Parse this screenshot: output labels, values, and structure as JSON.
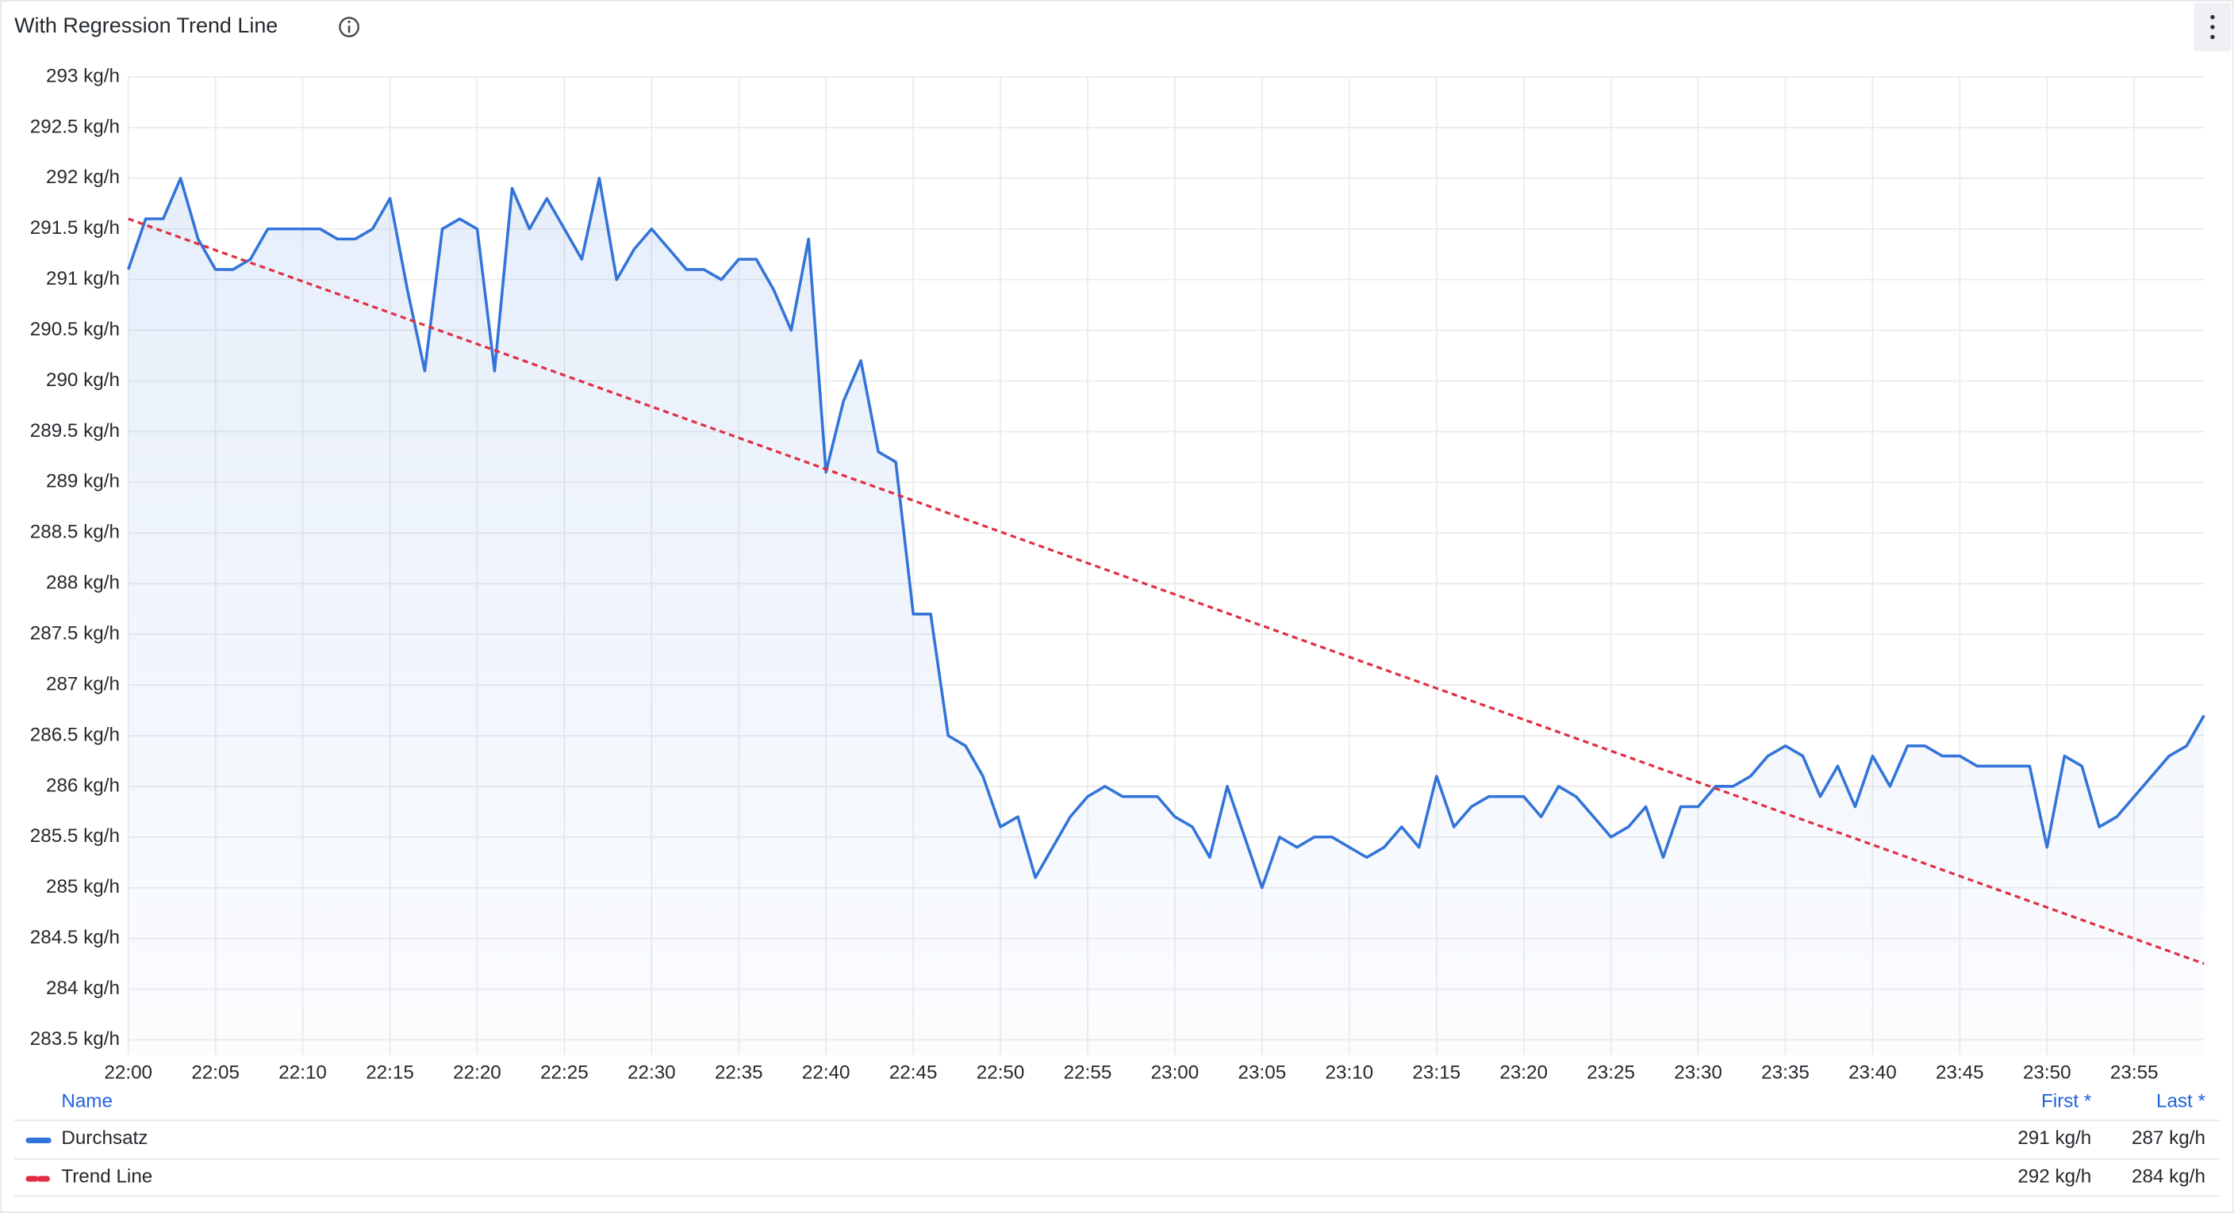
{
  "chart_data": {
    "type": "line",
    "title": "With Regression Trend Line",
    "x": [
      "22:00",
      "22:01",
      "22:02",
      "22:03",
      "22:04",
      "22:05",
      "22:06",
      "22:07",
      "22:08",
      "22:09",
      "22:10",
      "22:11",
      "22:12",
      "22:13",
      "22:14",
      "22:15",
      "22:16",
      "22:17",
      "22:18",
      "22:19",
      "22:20",
      "22:21",
      "22:22",
      "22:23",
      "22:24",
      "22:25",
      "22:26",
      "22:27",
      "22:28",
      "22:29",
      "22:30",
      "22:31",
      "22:32",
      "22:33",
      "22:34",
      "22:35",
      "22:36",
      "22:37",
      "22:38",
      "22:39",
      "22:40",
      "22:41",
      "22:42",
      "22:43",
      "22:44",
      "22:45",
      "22:46",
      "22:47",
      "22:48",
      "22:49",
      "22:50",
      "22:51",
      "22:52",
      "22:53",
      "22:54",
      "22:55",
      "22:56",
      "22:57",
      "22:58",
      "22:59",
      "23:00",
      "23:01",
      "23:02",
      "23:03",
      "23:04",
      "23:05",
      "23:06",
      "23:07",
      "23:08",
      "23:09",
      "23:10",
      "23:11",
      "23:12",
      "23:13",
      "23:14",
      "23:15",
      "23:16",
      "23:17",
      "23:18",
      "23:19",
      "23:20",
      "23:21",
      "23:22",
      "23:23",
      "23:24",
      "23:25",
      "23:26",
      "23:27",
      "23:28",
      "23:29",
      "23:30",
      "23:31",
      "23:32",
      "23:33",
      "23:34",
      "23:35",
      "23:36",
      "23:37",
      "23:38",
      "23:39",
      "23:40",
      "23:41",
      "23:42",
      "23:43",
      "23:44",
      "23:45",
      "23:46",
      "23:47",
      "23:48",
      "23:49",
      "23:50",
      "23:51",
      "23:52",
      "23:53",
      "23:54",
      "23:55",
      "23:56",
      "23:57",
      "23:58",
      "23:59"
    ],
    "xlim": [
      "22:00",
      "23:59"
    ],
    "xticks": [
      "22:00",
      "22:05",
      "22:10",
      "22:15",
      "22:20",
      "22:25",
      "22:30",
      "22:35",
      "22:40",
      "22:45",
      "22:50",
      "22:55",
      "23:00",
      "23:05",
      "23:10",
      "23:15",
      "23:20",
      "23:25",
      "23:30",
      "23:35",
      "23:40",
      "23:45",
      "23:50",
      "23:55"
    ],
    "ylim": [
      283.35,
      293
    ],
    "yticks": [
      {
        "value": 283.5,
        "label": "283.5 kg/h"
      },
      {
        "value": 284,
        "label": "284 kg/h"
      },
      {
        "value": 284.5,
        "label": "284.5 kg/h"
      },
      {
        "value": 285,
        "label": "285 kg/h"
      },
      {
        "value": 285.5,
        "label": "285.5 kg/h"
      },
      {
        "value": 286,
        "label": "286 kg/h"
      },
      {
        "value": 286.5,
        "label": "286.5 kg/h"
      },
      {
        "value": 287,
        "label": "287 kg/h"
      },
      {
        "value": 287.5,
        "label": "287.5 kg/h"
      },
      {
        "value": 288,
        "label": "288 kg/h"
      },
      {
        "value": 288.5,
        "label": "288.5 kg/h"
      },
      {
        "value": 289,
        "label": "289 kg/h"
      },
      {
        "value": 289.5,
        "label": "289.5 kg/h"
      },
      {
        "value": 290,
        "label": "290 kg/h"
      },
      {
        "value": 290.5,
        "label": "290.5 kg/h"
      },
      {
        "value": 291,
        "label": "291 kg/h"
      },
      {
        "value": 291.5,
        "label": "291.5 kg/h"
      },
      {
        "value": 292,
        "label": "292 kg/h"
      },
      {
        "value": 292.5,
        "label": "292.5 kg/h"
      },
      {
        "value": 293,
        "label": "293 kg/h"
      }
    ],
    "grid": true,
    "legend_headers": [
      "Name",
      "First *",
      "Last *"
    ],
    "series": [
      {
        "name": "Durchsatz",
        "color": "#3274d9",
        "fill": true,
        "values": [
          291.1,
          291.6,
          291.6,
          292.0,
          291.4,
          291.1,
          291.1,
          291.2,
          291.5,
          291.5,
          291.5,
          291.5,
          291.4,
          291.4,
          291.5,
          291.8,
          290.9,
          290.1,
          291.5,
          291.6,
          291.5,
          290.1,
          291.9,
          291.5,
          291.8,
          291.5,
          291.2,
          292.0,
          291.0,
          291.3,
          291.5,
          291.3,
          291.1,
          291.1,
          291.0,
          291.2,
          291.2,
          290.9,
          290.5,
          291.4,
          289.1,
          289.8,
          290.2,
          289.3,
          289.2,
          287.7,
          287.7,
          286.5,
          286.4,
          286.1,
          285.6,
          285.7,
          285.1,
          285.4,
          285.7,
          285.9,
          286.0,
          285.9,
          285.9,
          285.9,
          285.7,
          285.6,
          285.3,
          286.0,
          285.5,
          285.0,
          285.5,
          285.4,
          285.5,
          285.5,
          285.4,
          285.3,
          285.4,
          285.6,
          285.4,
          286.1,
          285.6,
          285.8,
          285.9,
          285.9,
          285.9,
          285.7,
          286.0,
          285.9,
          285.7,
          285.5,
          285.6,
          285.8,
          285.3,
          285.8,
          285.8,
          286.0,
          286.0,
          286.1,
          286.3,
          286.4,
          286.3,
          285.9,
          286.2,
          285.8,
          286.3,
          286.0,
          286.4,
          286.4,
          286.3,
          286.3,
          286.2,
          286.2,
          286.2,
          286.2,
          285.4,
          286.3,
          286.2,
          285.6,
          285.7,
          285.9,
          286.1,
          286.3,
          286.4,
          286.7
        ],
        "first_label": "291 kg/h",
        "last_label": "287 kg/h"
      },
      {
        "name": "Trend Line",
        "color": "#e02f44",
        "dash": true,
        "x": [
          "22:00",
          "23:59"
        ],
        "values": [
          291.6,
          284.25
        ],
        "first_label": "292 kg/h",
        "last_label": "284 kg/h"
      }
    ]
  }
}
